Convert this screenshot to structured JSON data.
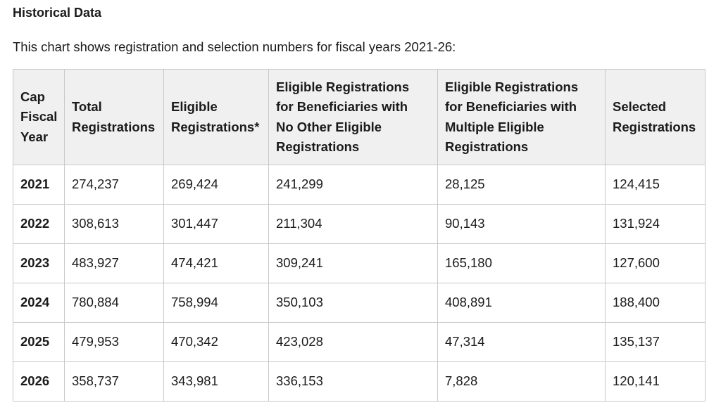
{
  "page": {
    "heading": "Historical Data",
    "intro": "This chart shows registration and selection numbers for fiscal years 2021-26:"
  },
  "table": {
    "headers": [
      [
        "Cap",
        "Fiscal",
        "Year"
      ],
      [
        "Total",
        "Registrations"
      ],
      [
        "Eligible",
        "Registrations*"
      ],
      [
        "Eligible Registrations",
        "for Beneficiaries with",
        "No Other Eligible",
        "Registrations"
      ],
      [
        "Eligible Registrations",
        "for Beneficiaries with",
        "Multiple Eligible",
        "Registrations"
      ],
      [
        "Selected",
        "Registrations"
      ]
    ],
    "rows": [
      [
        "2021",
        "274,237",
        "269,424",
        "241,299",
        "28,125",
        "124,415"
      ],
      [
        "2022",
        "308,613",
        "301,447",
        "211,304",
        "90,143",
        "131,924"
      ],
      [
        "2023",
        "483,927",
        "474,421",
        "309,241",
        "165,180",
        "127,600"
      ],
      [
        "2024",
        "780,884",
        "758,994",
        "350,103",
        "408,891",
        "188,400"
      ],
      [
        "2025",
        "479,953",
        "470,342",
        "423,028",
        "47,314",
        "135,137"
      ],
      [
        "2026",
        "358,737",
        "343,981",
        "336,153",
        "7,828",
        "120,141"
      ]
    ]
  }
}
